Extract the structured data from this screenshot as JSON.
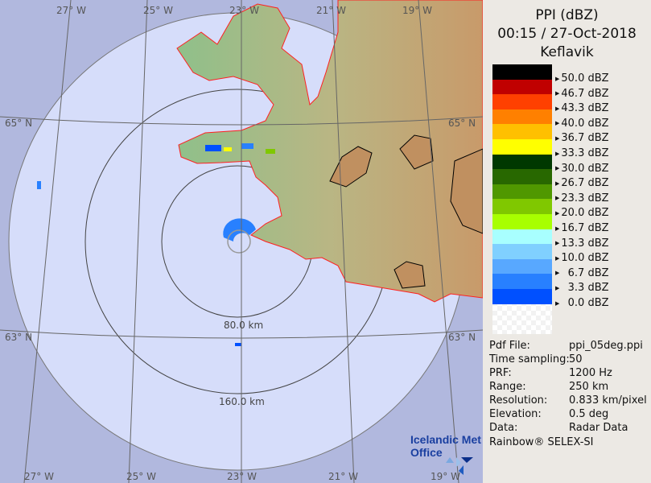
{
  "header": {
    "title": "PPI (dBZ)",
    "datetime": "00:15 / 27-Oct-2018",
    "site": "Keflavik"
  },
  "legend": [
    {
      "label": "50.0 dBZ",
      "color": "#000000"
    },
    {
      "label": "46.7 dBZ",
      "color": "#c00000"
    },
    {
      "label": "43.3 dBZ",
      "color": "#ff4000"
    },
    {
      "label": "40.0 dBZ",
      "color": "#ff8000"
    },
    {
      "label": "36.7 dBZ",
      "color": "#ffc000"
    },
    {
      "label": "33.3 dBZ",
      "color": "#ffff00"
    },
    {
      "label": "30.0 dBZ",
      "color": "#003800"
    },
    {
      "label": "26.7 dBZ",
      "color": "#286800"
    },
    {
      "label": "23.3 dBZ",
      "color": "#509800"
    },
    {
      "label": "20.0 dBZ",
      "color": "#80c800"
    },
    {
      "label": "16.7 dBZ",
      "color": "#a8ff00"
    },
    {
      "label": "13.3 dBZ",
      "color": "#a8ffff"
    },
    {
      "label": "10.0 dBZ",
      "color": "#80d0ff"
    },
    {
      "label": "  6.7 dBZ",
      "color": "#58a8ff"
    },
    {
      "label": "  3.3 dBZ",
      "color": "#2880ff"
    },
    {
      "label": "  0.0 dBZ",
      "color": "#0050ff"
    }
  ],
  "info": [
    {
      "key": "Pdf File:",
      "value": "ppi_05deg.ppi"
    },
    {
      "key": "Time sampling:",
      "value": "50"
    },
    {
      "key": "PRF:",
      "value": "1200 Hz"
    },
    {
      "key": "Range:",
      "value": "250 km"
    },
    {
      "key": "Resolution:",
      "value": "0.833 km/pixel"
    },
    {
      "key": "Elevation:",
      "value": "0.5 deg"
    },
    {
      "key": "Data:",
      "value": "Radar Data"
    }
  ],
  "credit": "Rainbow® SELEX-SI",
  "logo": {
    "line1": "Icelandic Met",
    "line2": "Office"
  },
  "map": {
    "ring_labels": [
      "80.0 km",
      "160.0 km"
    ],
    "lon_top": [
      "27° W",
      "25° W",
      "23° W",
      "21° W",
      "19° W"
    ],
    "lon_bottom": [
      "27° W",
      "25° W",
      "23° W",
      "21° W",
      "19° W"
    ],
    "lat_left": [
      "65° N",
      "63° N"
    ],
    "lat_right": [
      "65° N",
      "63° N"
    ],
    "colors": {
      "outside": "#b1b8de",
      "inside": "#d6ddfa",
      "coast": "#ff2020"
    }
  }
}
